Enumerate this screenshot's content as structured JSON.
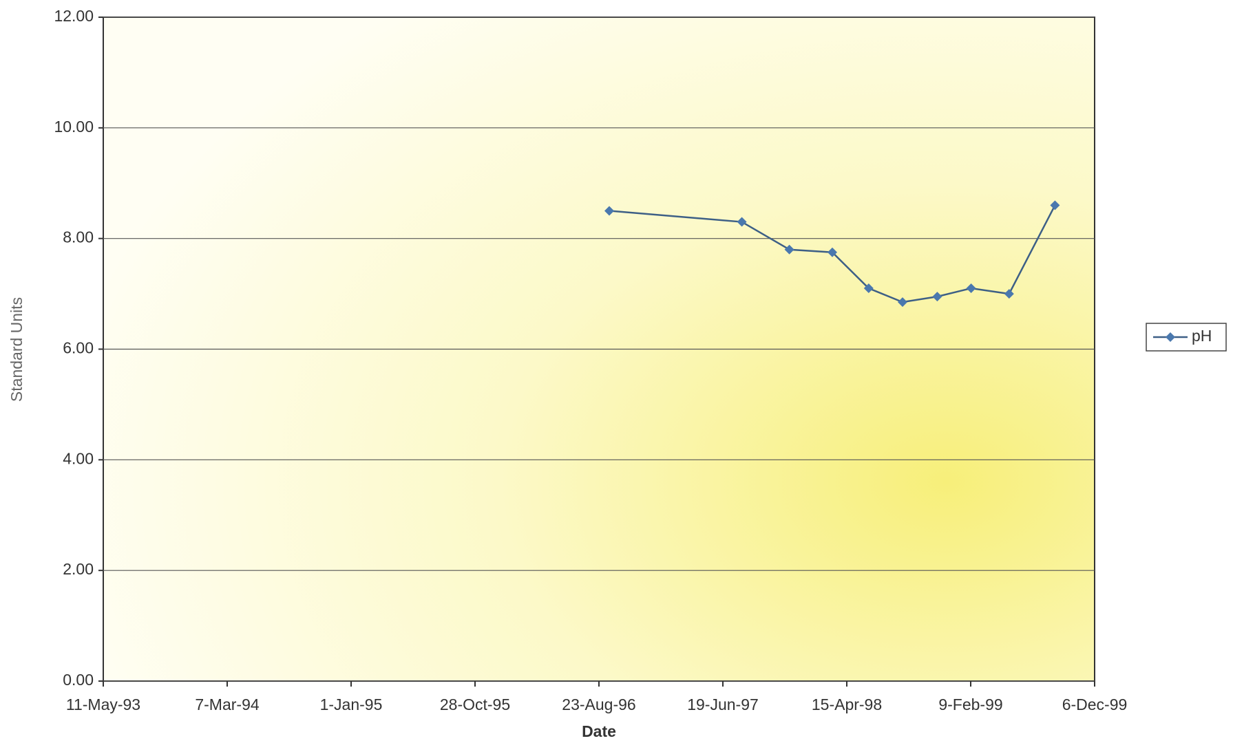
{
  "chart_data": {
    "type": "line",
    "x_label": "Date",
    "y_label": "Standard Units",
    "x": [
      "1996-09-17",
      "1997-08-04",
      "1997-11-27",
      "1998-03-11",
      "1998-06-07",
      "1998-08-28",
      "1998-11-20",
      "1999-02-10",
      "1999-05-13",
      "1999-09-01"
    ],
    "series": [
      {
        "name": "pH",
        "color": "#4a78ae",
        "values": [
          8.5,
          8.3,
          7.8,
          7.75,
          7.1,
          6.85,
          6.95,
          7.1,
          7.0,
          8.6
        ]
      }
    ],
    "xlim": [
      "1993-05-11",
      "1999-12-06"
    ],
    "xticks": [
      {
        "value": "1993-05-11",
        "label": "11-May-93"
      },
      {
        "value": "1994-03-07",
        "label": "7-Mar-94"
      },
      {
        "value": "1995-01-01",
        "label": "1-Jan-95"
      },
      {
        "value": "1995-10-28",
        "label": "28-Oct-95"
      },
      {
        "value": "1996-08-23",
        "label": "23-Aug-96"
      },
      {
        "value": "1997-06-19",
        "label": "19-Jun-97"
      },
      {
        "value": "1998-04-15",
        "label": "15-Apr-98"
      },
      {
        "value": "1999-02-09",
        "label": "9-Feb-99"
      },
      {
        "value": "1999-12-06",
        "label": "6-Dec-99"
      }
    ],
    "ylim": [
      0,
      12
    ],
    "yticks": [
      {
        "value": 0,
        "label": "0.00"
      },
      {
        "value": 2,
        "label": "2.00"
      },
      {
        "value": 4,
        "label": "4.00"
      },
      {
        "value": 6,
        "label": "6.00"
      },
      {
        "value": 8,
        "label": "8.00"
      },
      {
        "value": 10,
        "label": "10.00"
      },
      {
        "value": 12,
        "label": "12.00"
      }
    ],
    "grid": true,
    "legend": "right"
  }
}
